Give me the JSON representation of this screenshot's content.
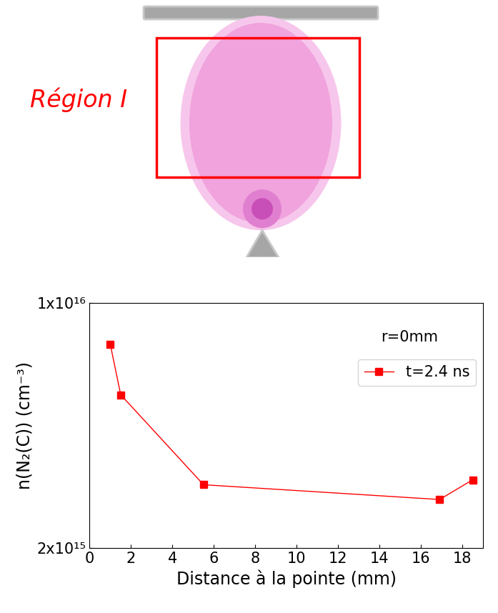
{
  "diagram": {
    "region_label": "Région I"
  },
  "chart_data": {
    "type": "line",
    "xlabel": "Distance à la pointe (mm)",
    "ylabel": "n(N₂(C)) (cm⁻³)",
    "annotation": "r=0mm",
    "x": [
      1.0,
      1.5,
      5.5,
      16.9,
      18.5
    ],
    "series": [
      {
        "name": "t=2.4 ns",
        "color": "#ff0000",
        "marker": "square",
        "line_style": "solid",
        "values": [
          7600000000000000.0,
          5470000000000000.0,
          3030000000000000.0,
          2750000000000000.0,
          3130000000000000.0
        ]
      }
    ],
    "xlim": [
      0,
      19
    ],
    "xticks": [
      0,
      2,
      4,
      6,
      8,
      10,
      12,
      14,
      16,
      18
    ],
    "ylim": [
      2000000000000000.0,
      1e+16
    ],
    "yticks": [
      {
        "value": 2000000000000000.0,
        "label": "2x10¹⁵"
      },
      {
        "value": 1e+16,
        "label": "1x10¹⁶"
      }
    ],
    "log": "y",
    "legend": "upper right",
    "grid": false
  }
}
